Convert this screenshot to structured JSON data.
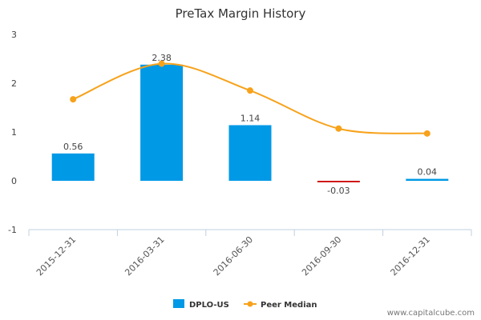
{
  "chart_data": {
    "type": "bar",
    "title": "PreTax Margin History",
    "categories": [
      "2015-12-31",
      "2016-03-31",
      "2016-06-30",
      "2016-09-30",
      "2016-12-31"
    ],
    "ylim": [
      -1,
      3
    ],
    "yticks": [
      -1,
      0,
      1,
      2,
      3
    ],
    "grid": false,
    "legend_position": "bottom",
    "series": [
      {
        "name": "DPLO-US",
        "type": "bar",
        "values": [
          0.56,
          2.38,
          1.14,
          -0.03,
          0.04
        ],
        "labels": [
          "0.56",
          "2.38",
          "1.14",
          "-0.03",
          "0.04"
        ],
        "color": "#0099e6",
        "negative_color": "#cc0000"
      },
      {
        "name": "Peer Median",
        "type": "line",
        "values": [
          1.67,
          2.4,
          1.85,
          1.07,
          0.97
        ],
        "color": "#f7a21b"
      }
    ]
  },
  "watermark": "www.capitalcube.com"
}
